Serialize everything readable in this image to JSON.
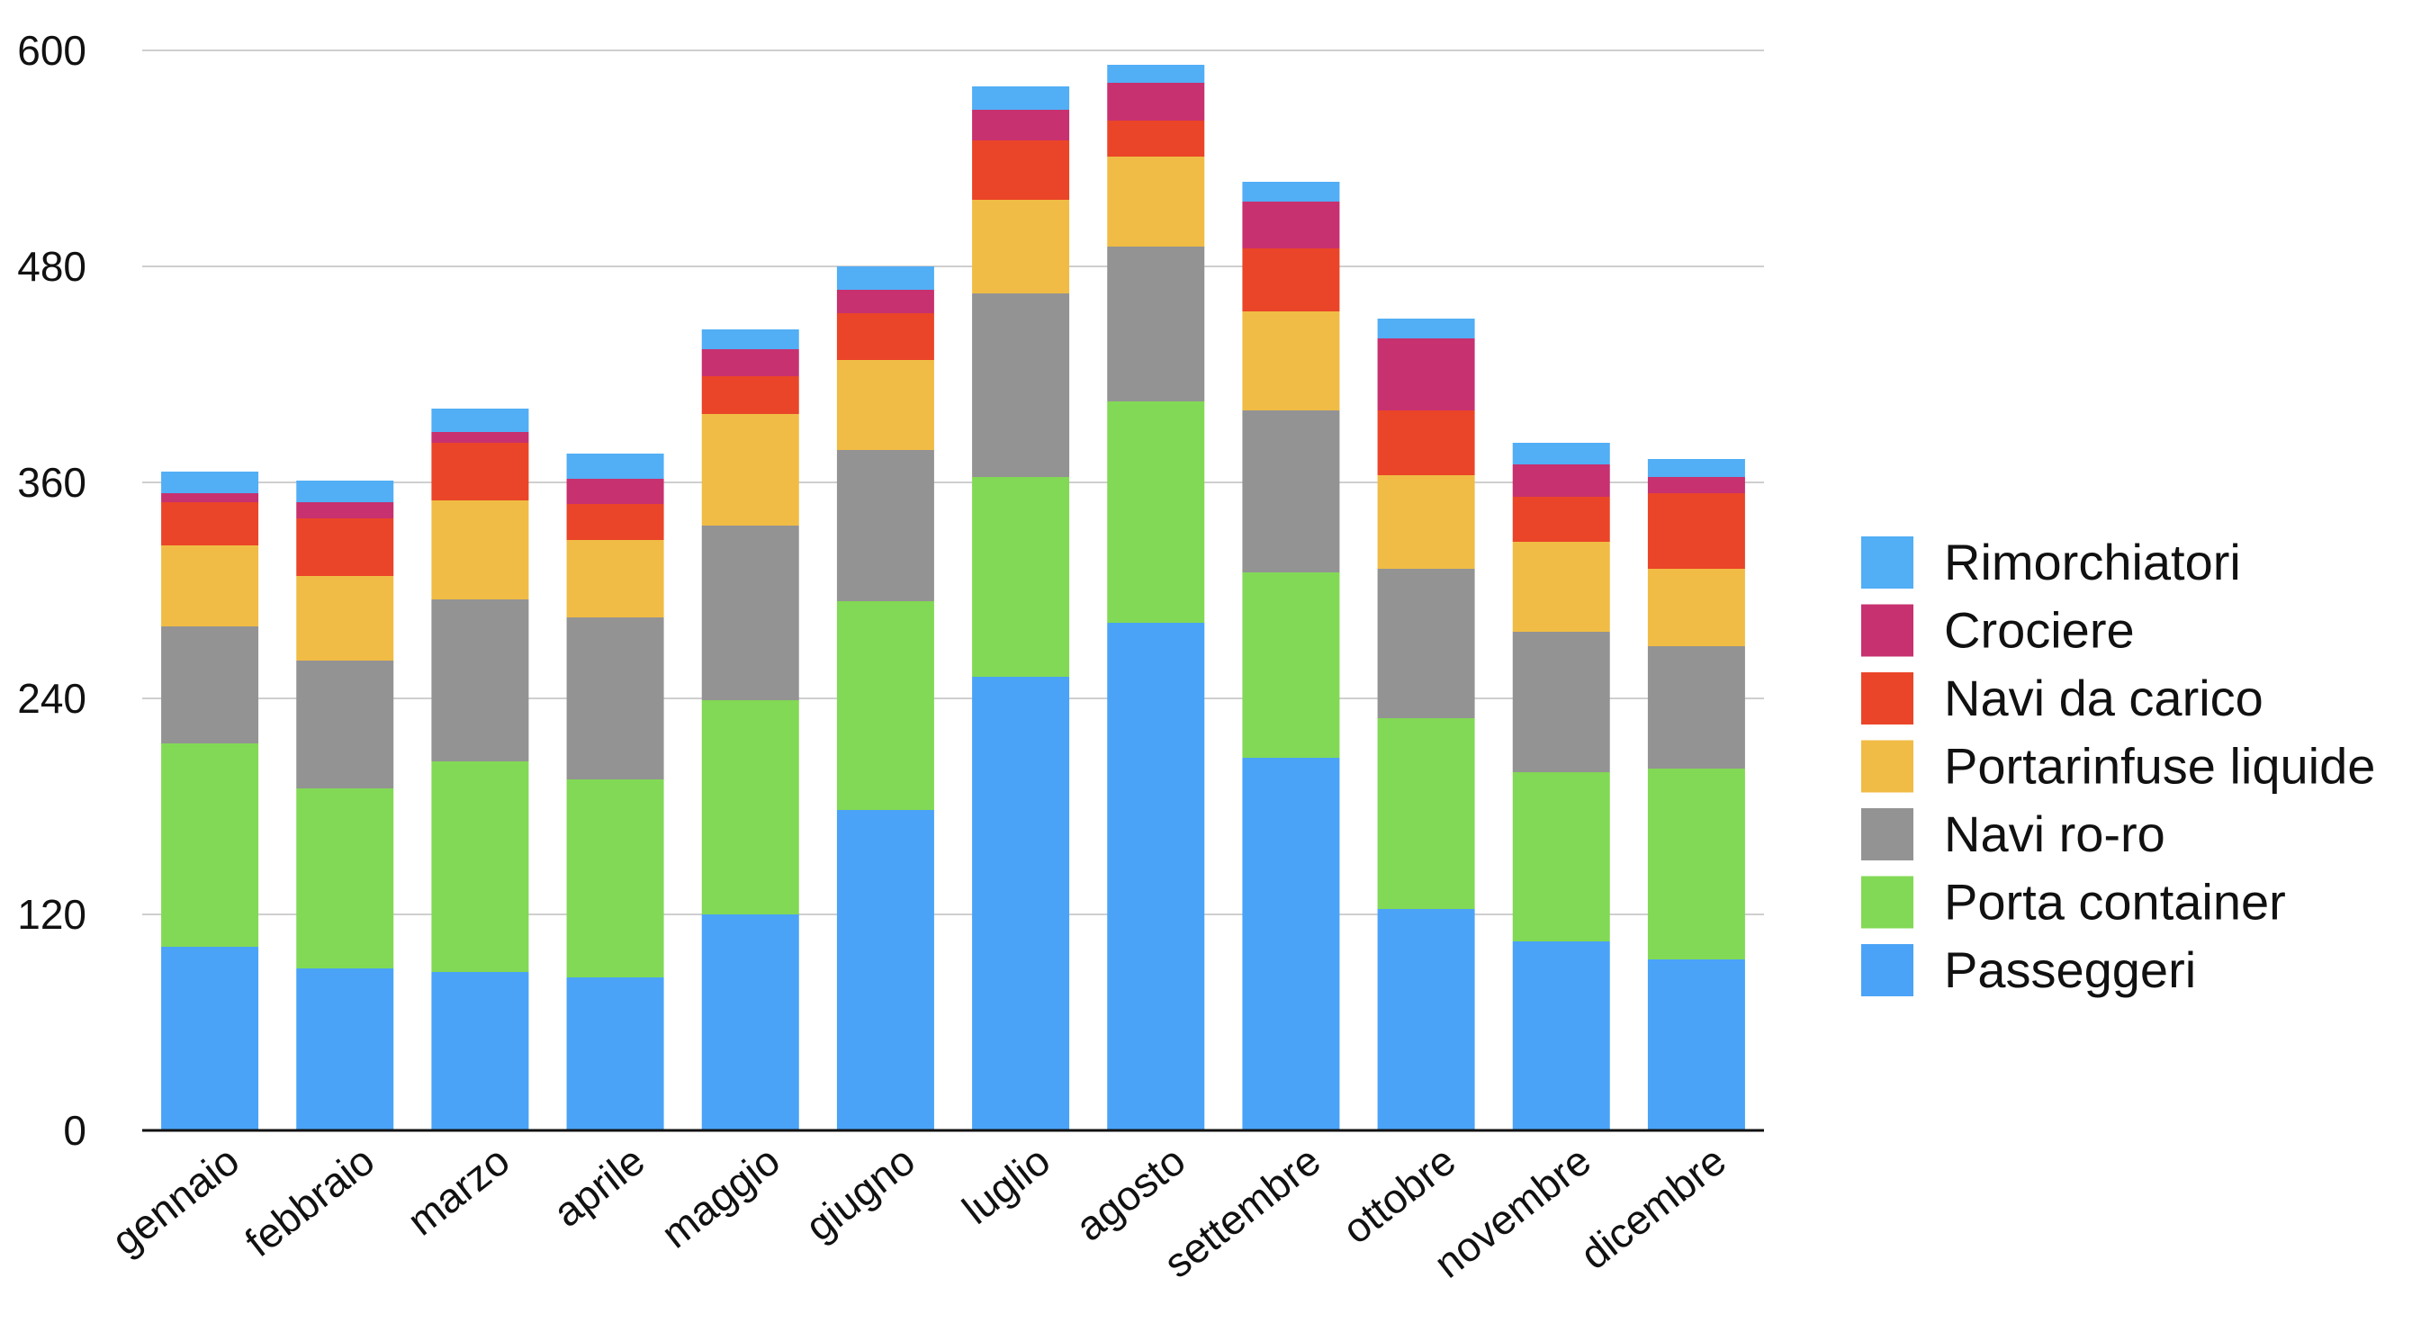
{
  "chart_data": {
    "type": "bar",
    "stacked": true,
    "title": "",
    "xlabel": "",
    "ylabel": "",
    "ylim": [
      0,
      600
    ],
    "yticks": [
      0,
      120,
      240,
      360,
      480,
      600
    ],
    "grid": true,
    "legend_position": "right",
    "categories": [
      "gennaio",
      "febbraio",
      "marzo",
      "aprile",
      "maggio",
      "giugno",
      "luglio",
      "agosto",
      "settembre",
      "ottobre",
      "novembre",
      "dicembre"
    ],
    "series": [
      {
        "name": "Passeggeri",
        "color": "#4aa3f7",
        "values": [
          102,
          90,
          88,
          85,
          120,
          178,
          252,
          282,
          207,
          123,
          105,
          95
        ]
      },
      {
        "name": "Porta container",
        "color": "#82d955",
        "values": [
          113,
          100,
          117,
          110,
          119,
          116,
          111,
          123,
          103,
          106,
          94,
          106
        ]
      },
      {
        "name": "Navi ro-ro",
        "color": "#939393",
        "values": [
          65,
          71,
          90,
          90,
          97,
          84,
          102,
          86,
          90,
          83,
          78,
          68
        ]
      },
      {
        "name": "Portarinfuse liquide",
        "color": "#f0bc45",
        "values": [
          45,
          47,
          55,
          43,
          62,
          50,
          52,
          50,
          55,
          52,
          50,
          43
        ]
      },
      {
        "name": "Navi da carico",
        "color": "#ea4528",
        "values": [
          24,
          32,
          32,
          20,
          21,
          26,
          33,
          20,
          35,
          36,
          25,
          42
        ]
      },
      {
        "name": "Crociere",
        "color": "#c7316f",
        "values": [
          5,
          9,
          6,
          14,
          15,
          13,
          17,
          21,
          26,
          40,
          18,
          9
        ]
      },
      {
        "name": "Rimorchiatori",
        "color": "#52aef5",
        "values": [
          12,
          12,
          13,
          14,
          11,
          13,
          13,
          10,
          11,
          11,
          12,
          10
        ]
      }
    ]
  }
}
